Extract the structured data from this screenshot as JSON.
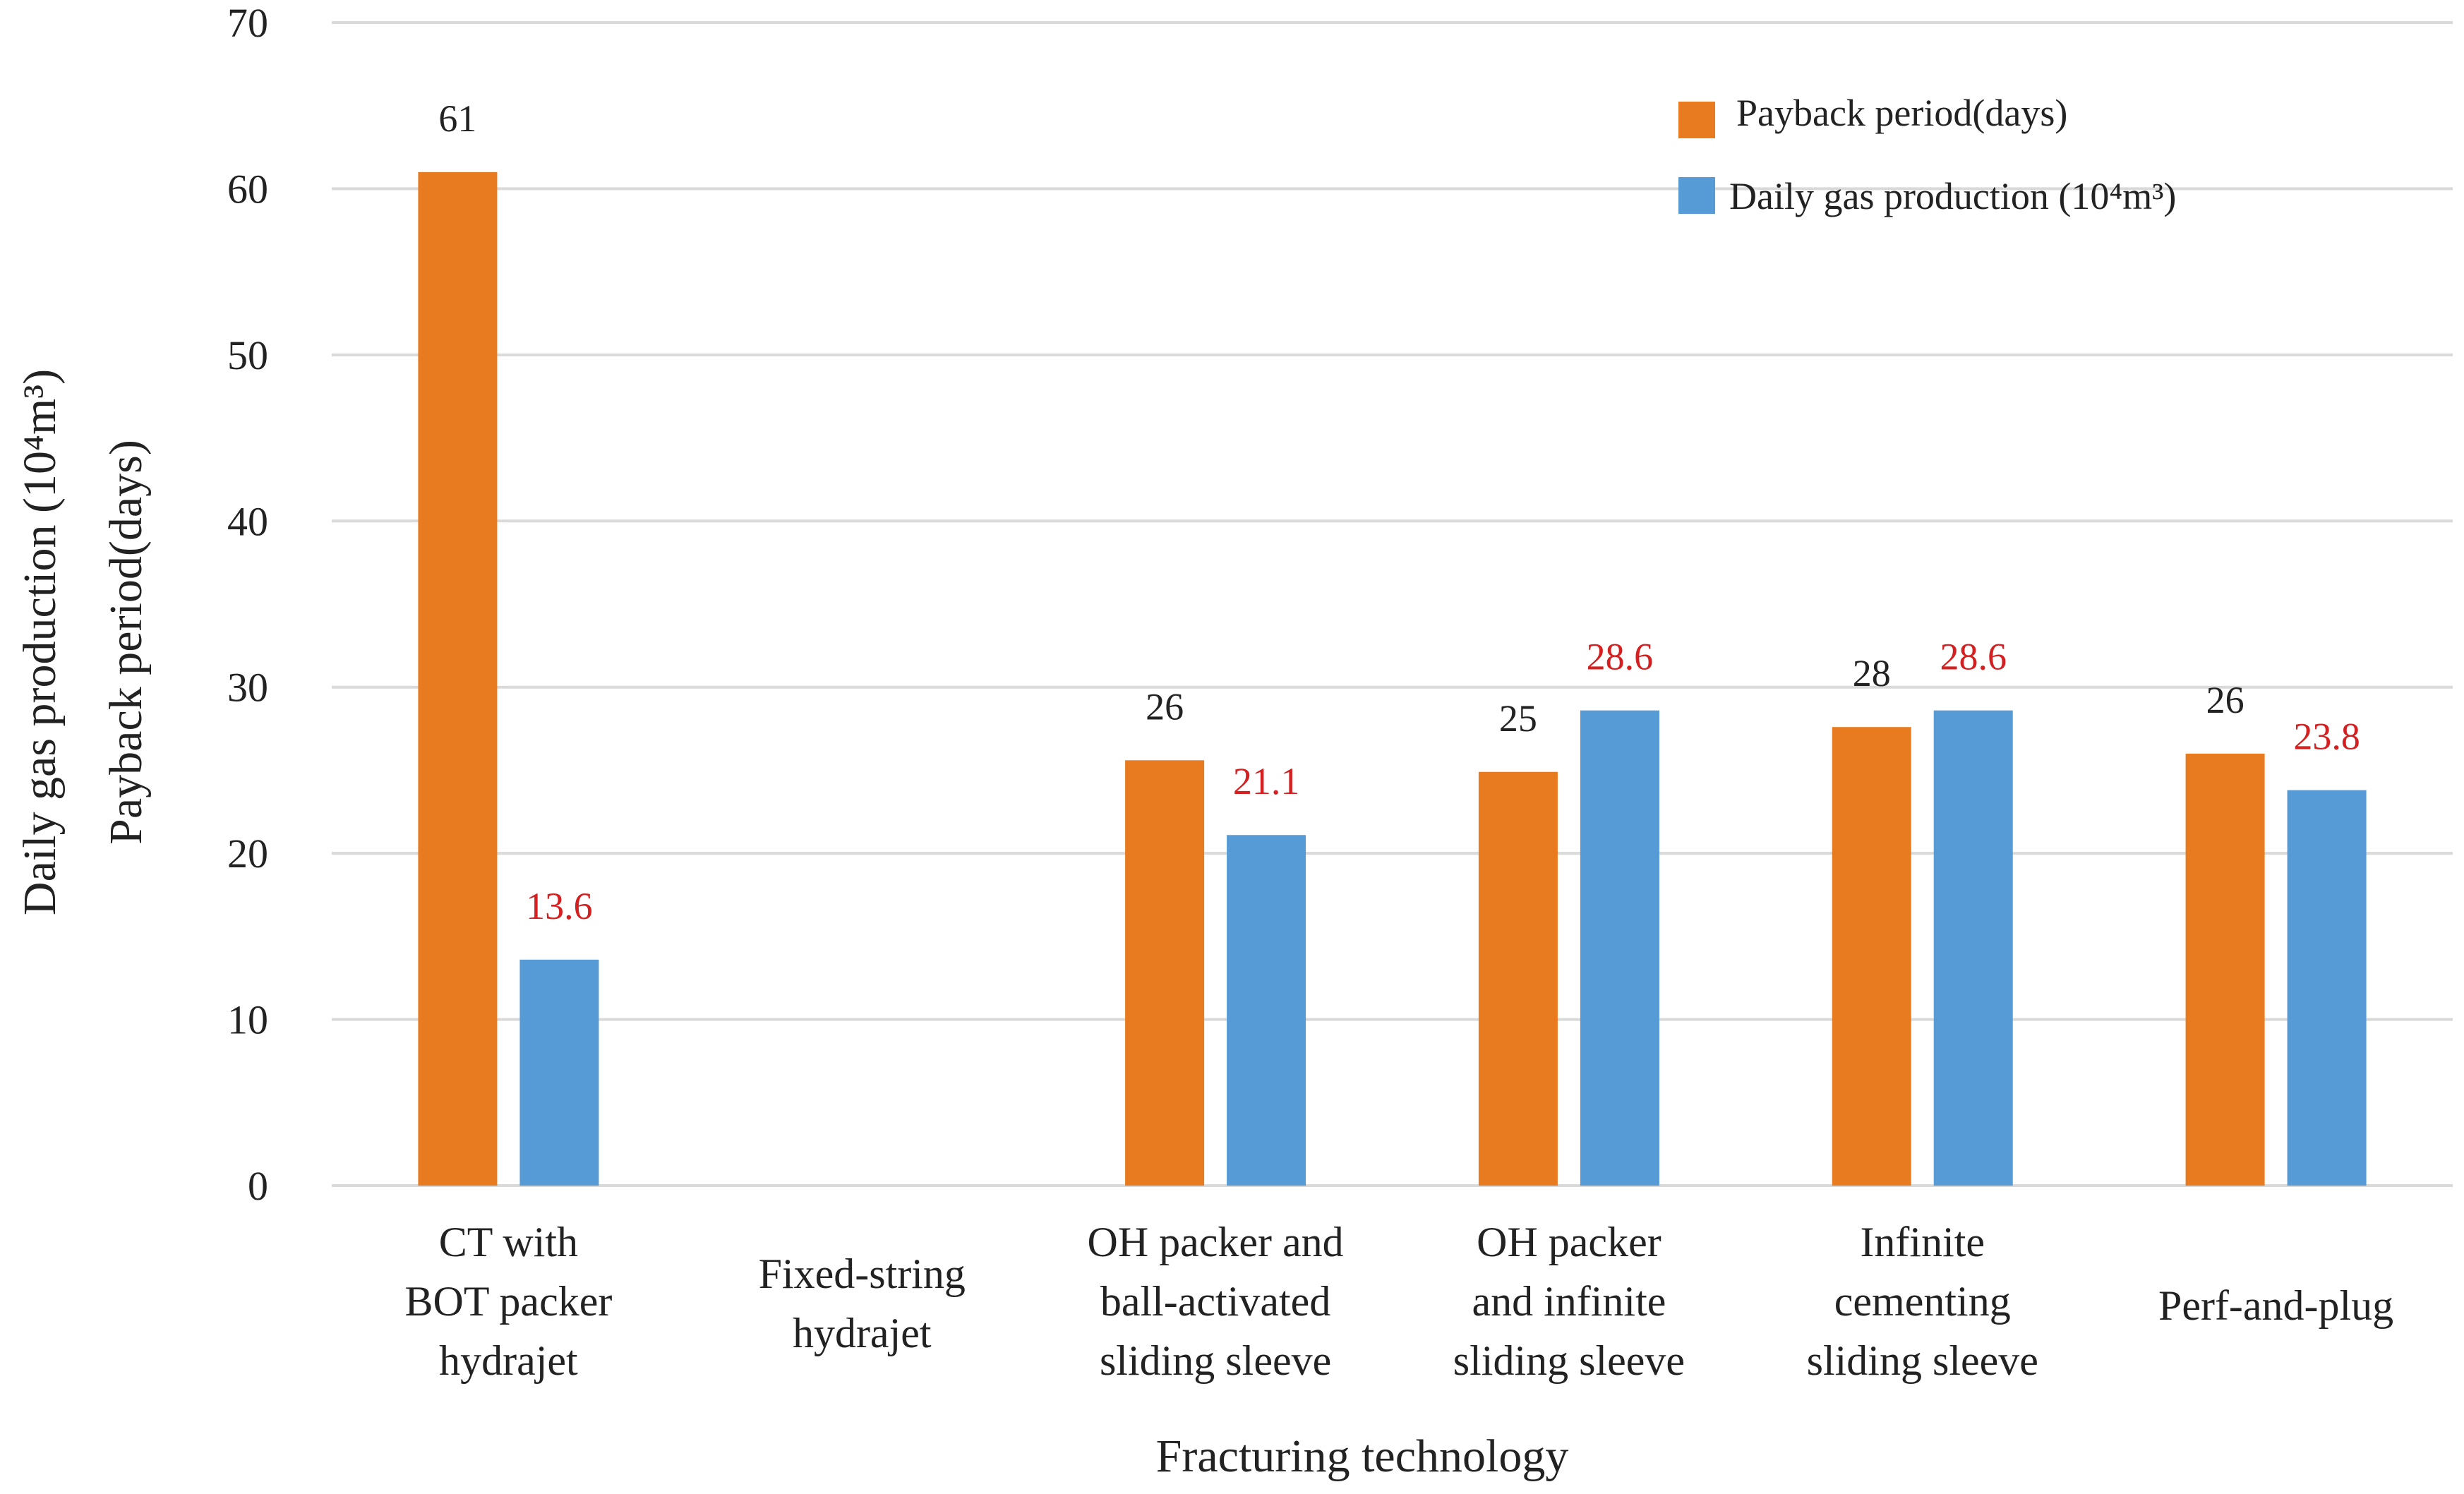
{
  "chart_data": {
    "type": "bar",
    "title": "",
    "xlabel": "Fracturing technology",
    "ylabel_lines": [
      "Daily gas production (10⁴m³)",
      "Payback period(days)"
    ],
    "ylim": [
      0,
      70
    ],
    "yticks": [
      0,
      10,
      20,
      30,
      40,
      50,
      60,
      70
    ],
    "categories": [
      [
        "CT with",
        "BOT packer",
        "hydrajet"
      ],
      [
        "Fixed-string",
        "hydrajet"
      ],
      [
        "OH packer and",
        "ball-activated",
        "sliding sleeve"
      ],
      [
        "OH packer",
        "and infinite",
        "sliding sleeve"
      ],
      [
        "Infinite",
        "cementing",
        "sliding sleeve"
      ],
      [
        "Perf-and-plug"
      ]
    ],
    "series": [
      {
        "name": "Payback period(days)",
        "color": "#e87b1f",
        "label_color": "#222222",
        "values": [
          61,
          null,
          25.6,
          24.9,
          27.6,
          26
        ],
        "labels": [
          "61",
          "",
          "26",
          "25",
          "28",
          "26"
        ]
      },
      {
        "name": "Daily gas production (10⁴m³)",
        "color": "#569bd6",
        "label_color": "#d42020",
        "values": [
          13.6,
          null,
          21.1,
          28.6,
          28.6,
          23.8
        ],
        "labels": [
          "13.6",
          "",
          "21.1",
          "28.6",
          "28.6",
          "23.8"
        ]
      }
    ],
    "legend": {
      "placement": "top-right",
      "entries": [
        "Payback period(days)",
        "Daily gas production (10⁴m³)"
      ]
    }
  }
}
